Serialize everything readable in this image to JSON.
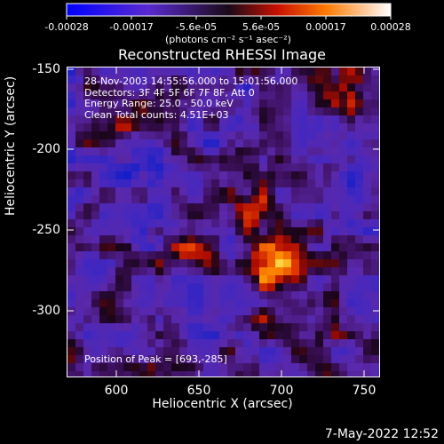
{
  "colorbar": {
    "ticks": [
      "-0.00028",
      "-0.00017",
      "-5.6e-05",
      "5.6e-05",
      "0.00017",
      "0.00028"
    ],
    "units": "(photons cm⁻² s⁻¹ asec⁻²)"
  },
  "title": "Reconstructed RHESSI Image",
  "info": {
    "line1": "28-Nov-2003 14:55:56.000 to 15:01:56.000",
    "line2": "Detectors: 3F 4F 5F 6F 7F 8F, Att 0",
    "line3": "Energy Range: 25.0 - 50.0 keV",
    "line4": "Clean    Total counts: 4.51E+03"
  },
  "peak_label": "Position of Peak = [693,-285]",
  "axes": {
    "xlabel": "Heliocentric X (arcsec)",
    "ylabel": "Heliocentric Y (arcsec)",
    "xticks": [
      "600",
      "650",
      "700",
      "750"
    ],
    "yticks": [
      "-150",
      "-200",
      "-250",
      "-300"
    ]
  },
  "timestamp": "7-May-2022 12:52",
  "colors": {
    "background": "#000000",
    "axes": "#ffffff"
  }
}
